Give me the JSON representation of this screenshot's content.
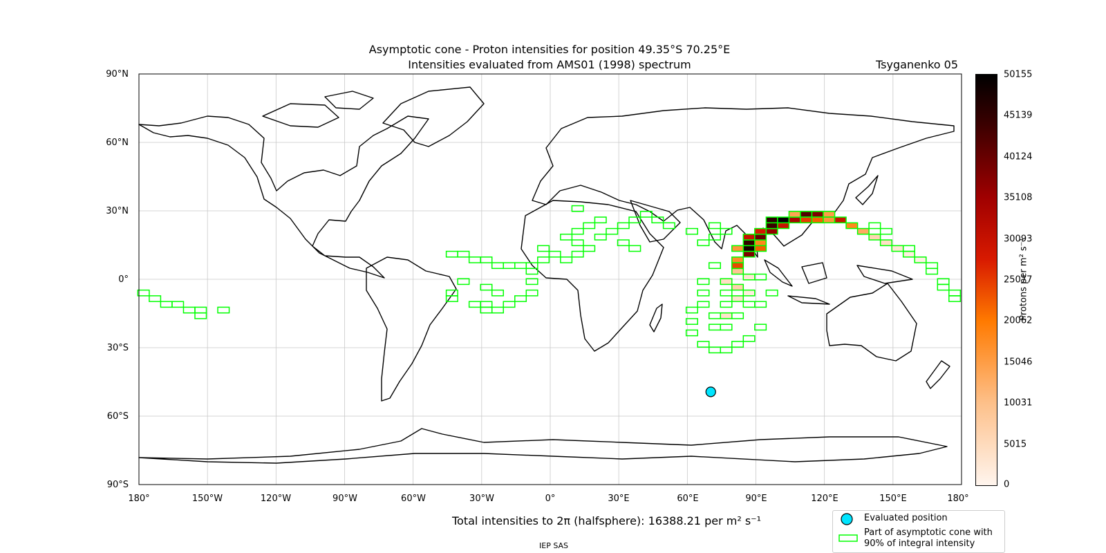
{
  "chart_data": {
    "type": "heatmap",
    "title": "Asymptotic cone - Proton intensities for position 49.35°S 70.25°E",
    "subtitle": "Intensities evaluated from AMS01 (1998) spectrum",
    "model": "Tsyganenko 05",
    "projection": "equirectangular",
    "xlim": [
      -180,
      180
    ],
    "ylim": [
      -90,
      90
    ],
    "grid": true,
    "lat_ticks": [
      "90°N",
      "60°N",
      "30°N",
      "0°",
      "30°S",
      "60°S",
      "90°S"
    ],
    "lon_ticks": [
      "180°",
      "150°W",
      "120°W",
      "90°W",
      "60°W",
      "30°W",
      "0°",
      "30°E",
      "60°E",
      "90°E",
      "120°E",
      "150°E",
      "180°"
    ],
    "colorbar": {
      "label": "Protons per m² s⁻¹",
      "ticks": [
        "50155",
        "45139",
        "40124",
        "35108",
        "30093",
        "25077",
        "20062",
        "15046",
        "10031",
        "5015",
        "0"
      ],
      "range": [
        0,
        50155
      ]
    },
    "evaluated_position": {
      "lat": -49.35,
      "lon": 70.25
    },
    "total_label": "Total intensities to 2π (halfsphere): 16388.21 per m² s⁻¹",
    "credit": "IEP SAS",
    "legend": [
      {
        "label": "Evaluated position",
        "marker": "circle",
        "color": "#00e5ff"
      },
      {
        "label": "Part of asymptotic cone with",
        "label2": "90% of integral intensity",
        "marker": "rect",
        "color": "#00ff00"
      }
    ],
    "cone_cells": [
      {
        "lon": -178,
        "lat": -6,
        "v": 0
      },
      {
        "lon": -173,
        "lat": -8.5,
        "v": 0
      },
      {
        "lon": -168,
        "lat": -11,
        "v": 0
      },
      {
        "lon": -163,
        "lat": -11,
        "v": 0
      },
      {
        "lon": -158,
        "lat": -13.5,
        "v": 0
      },
      {
        "lon": -153,
        "lat": -13.5,
        "v": 0
      },
      {
        "lon": -153,
        "lat": -16,
        "v": 0
      },
      {
        "lon": -143,
        "lat": -13.5,
        "v": 0
      },
      {
        "lon": -43,
        "lat": 11,
        "v": 0
      },
      {
        "lon": -38,
        "lat": 11,
        "v": 0
      },
      {
        "lon": -33,
        "lat": 8.5,
        "v": 0
      },
      {
        "lon": -28,
        "lat": 8.5,
        "v": 0
      },
      {
        "lon": -23,
        "lat": 6,
        "v": 0
      },
      {
        "lon": -18,
        "lat": 6,
        "v": 0
      },
      {
        "lon": -13,
        "lat": 6,
        "v": 0
      },
      {
        "lon": -38,
        "lat": -1,
        "v": 0
      },
      {
        "lon": -43,
        "lat": -6,
        "v": 0
      },
      {
        "lon": -43,
        "lat": -8.5,
        "v": 0
      },
      {
        "lon": -28,
        "lat": -3.5,
        "v": 0
      },
      {
        "lon": -23,
        "lat": -6,
        "v": 0
      },
      {
        "lon": -33,
        "lat": -11,
        "v": 0
      },
      {
        "lon": -28,
        "lat": -11,
        "v": 0
      },
      {
        "lon": -28,
        "lat": -13.5,
        "v": 0
      },
      {
        "lon": -23,
        "lat": -13.5,
        "v": 0
      },
      {
        "lon": -18,
        "lat": -11,
        "v": 0
      },
      {
        "lon": -13,
        "lat": -8.5,
        "v": 0
      },
      {
        "lon": -8,
        "lat": -6,
        "v": 0
      },
      {
        "lon": -8,
        "lat": -1,
        "v": 0
      },
      {
        "lon": -8,
        "lat": 3.5,
        "v": 0
      },
      {
        "lon": -8,
        "lat": 6,
        "v": 0
      },
      {
        "lon": -3,
        "lat": 8.5,
        "v": 0
      },
      {
        "lon": -3,
        "lat": 13.5,
        "v": 0
      },
      {
        "lon": 2,
        "lat": 11,
        "v": 0
      },
      {
        "lon": 7,
        "lat": 8.5,
        "v": 0
      },
      {
        "lon": 12,
        "lat": 11,
        "v": 0
      },
      {
        "lon": 17,
        "lat": 13.5,
        "v": 0
      },
      {
        "lon": 12,
        "lat": 16,
        "v": 0
      },
      {
        "lon": 7,
        "lat": 18.5,
        "v": 0
      },
      {
        "lon": 12,
        "lat": 21,
        "v": 0
      },
      {
        "lon": 17,
        "lat": 23.5,
        "v": 0
      },
      {
        "lon": 22,
        "lat": 26,
        "v": 0
      },
      {
        "lon": 12,
        "lat": 31,
        "v": 0
      },
      {
        "lon": 22,
        "lat": 18.5,
        "v": 0
      },
      {
        "lon": 27,
        "lat": 21,
        "v": 0
      },
      {
        "lon": 32,
        "lat": 23.5,
        "v": 0
      },
      {
        "lon": 37,
        "lat": 26,
        "v": 0
      },
      {
        "lon": 42,
        "lat": 28.5,
        "v": 0
      },
      {
        "lon": 47,
        "lat": 26,
        "v": 0
      },
      {
        "lon": 52,
        "lat": 23.5,
        "v": 0
      },
      {
        "lon": 32,
        "lat": 16,
        "v": 0
      },
      {
        "lon": 37,
        "lat": 13.5,
        "v": 0
      },
      {
        "lon": 62,
        "lat": 21,
        "v": 0
      },
      {
        "lon": 67,
        "lat": 16,
        "v": 0
      },
      {
        "lon": 72,
        "lat": 23.5,
        "v": 0
      },
      {
        "lon": 72,
        "lat": 18.5,
        "v": 0
      },
      {
        "lon": 77,
        "lat": 21,
        "v": 0
      },
      {
        "lon": 72,
        "lat": 6,
        "v": 0
      },
      {
        "lon": 67,
        "lat": -1,
        "v": 0
      },
      {
        "lon": 67,
        "lat": -6,
        "v": 0
      },
      {
        "lon": 67,
        "lat": -11,
        "v": 0
      },
      {
        "lon": 62,
        "lat": -13.5,
        "v": 0
      },
      {
        "lon": 62,
        "lat": -18.5,
        "v": 0
      },
      {
        "lon": 62,
        "lat": -23.5,
        "v": 0
      },
      {
        "lon": 67,
        "lat": -28.5,
        "v": 0
      },
      {
        "lon": 72,
        "lat": -31,
        "v": 0
      },
      {
        "lon": 77,
        "lat": -31,
        "v": 0
      },
      {
        "lon": 82,
        "lat": -28.5,
        "v": 0
      },
      {
        "lon": 87,
        "lat": -26,
        "v": 0
      },
      {
        "lon": 92,
        "lat": -21,
        "v": 0
      },
      {
        "lon": 92,
        "lat": -11,
        "v": 0
      },
      {
        "lon": 97,
        "lat": -6,
        "v": 0
      },
      {
        "lon": 92,
        "lat": 1,
        "v": 0
      },
      {
        "lon": 72,
        "lat": -16,
        "v": 0
      },
      {
        "lon": 72,
        "lat": -21,
        "v": 0
      },
      {
        "lon": 77,
        "lat": -6,
        "v": 0
      },
      {
        "lon": 77,
        "lat": -11,
        "v": 0
      },
      {
        "lon": 77,
        "lat": -21,
        "v": 0
      },
      {
        "lon": 82,
        "lat": -16,
        "v": 0
      },
      {
        "lon": 87,
        "lat": -11,
        "v": 0
      },
      {
        "lon": 77,
        "lat": -1,
        "v": 4200
      },
      {
        "lon": 77,
        "lat": -16,
        "v": 3500
      },
      {
        "lon": 82,
        "lat": 3.5,
        "v": 9000
      },
      {
        "lon": 82,
        "lat": -3.5,
        "v": 6500
      },
      {
        "lon": 82,
        "lat": -8.5,
        "v": 3000
      },
      {
        "lon": 87,
        "lat": 1,
        "v": 2500
      },
      {
        "lon": 87,
        "lat": -6,
        "v": 1500
      },
      {
        "lon": 82,
        "lat": 8.5,
        "v": 17000
      },
      {
        "lon": 82,
        "lat": 6,
        "v": 24000
      },
      {
        "lon": 82,
        "lat": 13.5,
        "v": 16000
      },
      {
        "lon": 87,
        "lat": 11,
        "v": 38000
      },
      {
        "lon": 87,
        "lat": 13.5,
        "v": 48000
      },
      {
        "lon": 87,
        "lat": 16,
        "v": 45000
      },
      {
        "lon": 87,
        "lat": 18.5,
        "v": 30000
      },
      {
        "lon": 92,
        "lat": 13.5,
        "v": 22000
      },
      {
        "lon": 92,
        "lat": 16,
        "v": 18000
      },
      {
        "lon": 92,
        "lat": 18.5,
        "v": 40000
      },
      {
        "lon": 92,
        "lat": 21,
        "v": 28000
      },
      {
        "lon": 97,
        "lat": 21,
        "v": 36000
      },
      {
        "lon": 97,
        "lat": 23.5,
        "v": 44000
      },
      {
        "lon": 102,
        "lat": 23.5,
        "v": 30000
      },
      {
        "lon": 97,
        "lat": 26,
        "v": 46000
      },
      {
        "lon": 102,
        "lat": 26,
        "v": 50000
      },
      {
        "lon": 107,
        "lat": 26,
        "v": 34000
      },
      {
        "lon": 107,
        "lat": 28.5,
        "v": 14000
      },
      {
        "lon": 112,
        "lat": 28.5,
        "v": 42000
      },
      {
        "lon": 117,
        "lat": 28.5,
        "v": 38000
      },
      {
        "lon": 122,
        "lat": 28.5,
        "v": 15000
      },
      {
        "lon": 112,
        "lat": 26,
        "v": 25000
      },
      {
        "lon": 117,
        "lat": 26,
        "v": 22000
      },
      {
        "lon": 122,
        "lat": 26,
        "v": 16000
      },
      {
        "lon": 127,
        "lat": 26,
        "v": 30000
      },
      {
        "lon": 132,
        "lat": 23.5,
        "v": 18000
      },
      {
        "lon": 137,
        "lat": 21,
        "v": 13000
      },
      {
        "lon": 142,
        "lat": 18.5,
        "v": 6000
      },
      {
        "lon": 147,
        "lat": 16,
        "v": 4000
      },
      {
        "lon": 152,
        "lat": 13.5,
        "v": 2500
      },
      {
        "lon": 157,
        "lat": 11,
        "v": 1500
      },
      {
        "lon": 162,
        "lat": 8.5,
        "v": 800
      },
      {
        "lon": 167,
        "lat": 3.5,
        "v": 0
      },
      {
        "lon": 172,
        "lat": -1,
        "v": 0
      },
      {
        "lon": 177,
        "lat": -6,
        "v": 0
      },
      {
        "lon": 177,
        "lat": -8.5,
        "v": 0
      },
      {
        "lon": 142,
        "lat": 23.5,
        "v": 0
      },
      {
        "lon": 147,
        "lat": 21,
        "v": 0
      },
      {
        "lon": 157,
        "lat": 13.5,
        "v": 0
      },
      {
        "lon": 167,
        "lat": 6,
        "v": 0
      },
      {
        "lon": 172,
        "lat": -3.5,
        "v": 0
      }
    ]
  }
}
